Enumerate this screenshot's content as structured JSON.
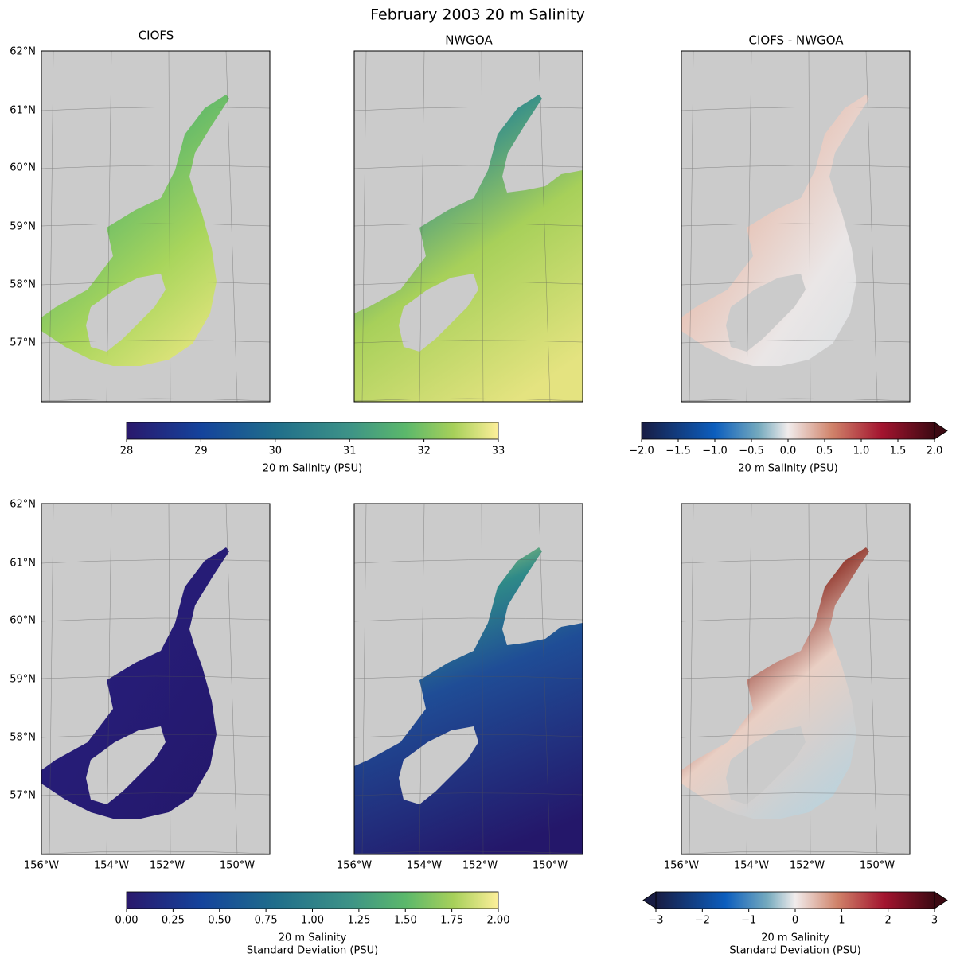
{
  "title": "February 2003 20 m Salinity",
  "panels": [
    {
      "title": "CIOFS"
    },
    {
      "title": "NWGOA"
    },
    {
      "title": "CIOFS - NWGOA"
    }
  ],
  "lat_labels": [
    "62°N",
    "61°N",
    "60°N",
    "59°N",
    "58°N",
    "57°N"
  ],
  "lon_labels": [
    "156°W",
    "154°W",
    "152°W",
    "150°W"
  ],
  "colorbars": [
    {
      "label": [
        "20 m Salinity (PSU)"
      ],
      "lim": [
        28,
        33
      ],
      "ticks": [
        28,
        29,
        30,
        31,
        32,
        33
      ],
      "colormap": "haline"
    },
    {
      "label": [
        "20 m Salinity (PSU)"
      ],
      "lim": [
        -2,
        2
      ],
      "extend": "max",
      "colormap": "balance",
      "ticks": [
        {
          "value": -2,
          "label": "−2.0"
        },
        {
          "value": -1.5,
          "label": "−1.5"
        },
        {
          "value": -1,
          "label": "−1.0"
        },
        {
          "value": -0.5,
          "label": "−0.5"
        },
        {
          "value": 0,
          "label": "0.0"
        },
        {
          "value": 0.5,
          "label": "0.5"
        },
        {
          "value": 1,
          "label": "1.0"
        },
        {
          "value": 1.5,
          "label": "1.5"
        },
        {
          "value": 2,
          "label": "2.0"
        }
      ]
    },
    {
      "label": [
        "20 m Salinity",
        "Standard Deviation (PSU)"
      ],
      "lim": [
        0,
        2
      ],
      "colormap": "haline",
      "ticks": [
        {
          "value": 0,
          "label": "0.00"
        },
        {
          "value": 0.25,
          "label": "0.25"
        },
        {
          "value": 0.5,
          "label": "0.50"
        },
        {
          "value": 0.75,
          "label": "0.75"
        },
        {
          "value": 1,
          "label": "1.00"
        },
        {
          "value": 1.25,
          "label": "1.25"
        },
        {
          "value": 1.5,
          "label": "1.50"
        },
        {
          "value": 1.75,
          "label": "1.75"
        },
        {
          "value": 2,
          "label": "2.00"
        }
      ]
    },
    {
      "label": [
        "20 m Salinity",
        "Standard Deviation (PSU)"
      ],
      "lim": [
        -3,
        3
      ],
      "extend": "both",
      "colormap": "balance",
      "ticks": [
        {
          "value": -3,
          "label": "−3"
        },
        {
          "value": -2,
          "label": "−2"
        },
        {
          "value": -1,
          "label": "−1"
        },
        0,
        1,
        2,
        3
      ]
    }
  ]
}
